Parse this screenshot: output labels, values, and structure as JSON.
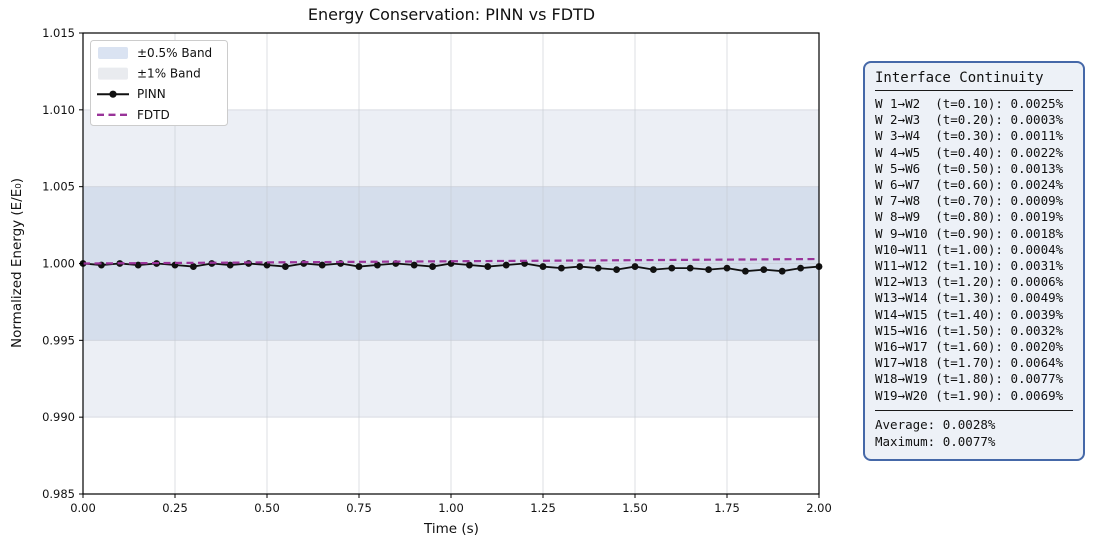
{
  "chart_data": {
    "type": "line",
    "title": "Energy Conservation: PINN vs FDTD",
    "xlabel": "Time (s)",
    "ylabel": "Normalized Energy (E/E₀)",
    "xlim": [
      0,
      2
    ],
    "ylim": [
      0.985,
      1.015
    ],
    "xticks": [
      0,
      0.25,
      0.5,
      0.75,
      1.0,
      1.25,
      1.5,
      1.75,
      2.0
    ],
    "yticks": [
      0.985,
      0.99,
      0.995,
      1.0,
      1.005,
      1.01,
      1.015
    ],
    "grid": true,
    "grid_color": "#c6cad2",
    "legend_position": "upper left",
    "bands": [
      {
        "label": "±0.5% Band",
        "y0": 0.995,
        "y1": 1.005,
        "fill": "#d5deec",
        "legend_fill": "#dae3f2"
      },
      {
        "label": "±1% Band",
        "y0": 0.99,
        "y1": 1.01,
        "fill": "#eceff5",
        "legend_fill": "#e9ebef"
      }
    ],
    "x": [
      0,
      0.05,
      0.1,
      0.15,
      0.2,
      0.25,
      0.3,
      0.35,
      0.4,
      0.45,
      0.5,
      0.55,
      0.6,
      0.65,
      0.7,
      0.75,
      0.8,
      0.85,
      0.9,
      0.95,
      1.0,
      1.05,
      1.1,
      1.15,
      1.2,
      1.25,
      1.3,
      1.35,
      1.4,
      1.45,
      1.5,
      1.55,
      1.6,
      1.65,
      1.7,
      1.75,
      1.8,
      1.85,
      1.9,
      1.95,
      2.0
    ],
    "series": [
      {
        "name": "PINN",
        "color": "#111111",
        "style": "solid",
        "markers": true,
        "width": 1.8,
        "values": [
          1.0,
          0.9999,
          1.0,
          0.9999,
          1.0,
          0.9999,
          0.9998,
          1.0,
          0.9999,
          1.0,
          0.9999,
          0.9998,
          1.0,
          0.9999,
          1.0,
          0.9998,
          0.9999,
          1.0,
          0.9999,
          0.9998,
          1.0,
          0.9999,
          0.9998,
          0.9999,
          1.0,
          0.9998,
          0.9997,
          0.9998,
          0.9997,
          0.9996,
          0.9998,
          0.9996,
          0.9997,
          0.9997,
          0.9996,
          0.9997,
          0.9995,
          0.9996,
          0.9995,
          0.9997,
          0.9998
        ]
      },
      {
        "name": "FDTD",
        "color": "#993399",
        "style": "dashed",
        "markers": false,
        "width": 2.2,
        "dash": "7 4.5",
        "values": [
          1.0,
          1.000007,
          1.000015,
          1.000022,
          1.000029,
          1.000036,
          1.000044,
          1.000051,
          1.000058,
          1.000065,
          1.000073,
          1.00008,
          1.000087,
          1.000094,
          1.000102,
          1.000109,
          1.000116,
          1.000123,
          1.000131,
          1.000138,
          1.000145,
          1.000152,
          1.00016,
          1.000167,
          1.000174,
          1.000181,
          1.000189,
          1.000196,
          1.000203,
          1.00021,
          1.000218,
          1.000225,
          1.000232,
          1.000239,
          1.000247,
          1.000254,
          1.000261,
          1.000268,
          1.000276,
          1.000283,
          1.00029
        ]
      }
    ]
  },
  "panel": {
    "title": "Interface Continuity",
    "rows": [
      "W 1→W2  (t=0.10): 0.0025%",
      "W 2→W3  (t=0.20): 0.0003%",
      "W 3→W4  (t=0.30): 0.0011%",
      "W 4→W5  (t=0.40): 0.0022%",
      "W 5→W6  (t=0.50): 0.0013%",
      "W 6→W7  (t=0.60): 0.0024%",
      "W 7→W8  (t=0.70): 0.0009%",
      "W 8→W9  (t=0.80): 0.0019%",
      "W 9→W10 (t=0.90): 0.0018%",
      "W10→W11 (t=1.00): 0.0004%",
      "W11→W12 (t=1.10): 0.0031%",
      "W12→W13 (t=1.20): 0.0006%",
      "W13→W14 (t=1.30): 0.0049%",
      "W14→W15 (t=1.40): 0.0039%",
      "W15→W16 (t=1.50): 0.0032%",
      "W16→W17 (t=1.60): 0.0020%",
      "W17→W18 (t=1.70): 0.0064%",
      "W18→W19 (t=1.80): 0.0077%",
      "W19→W20 (t=1.90): 0.0069%"
    ],
    "average": "Average: 0.0028%",
    "maximum": "Maximum: 0.0077%"
  },
  "colors": {
    "panel_border": "#4568a8",
    "panel_bg": "#edf1f7",
    "pinn": "#111111",
    "fdtd": "#993399",
    "band_half": "#d5deec",
    "band_one": "#eceff5"
  }
}
